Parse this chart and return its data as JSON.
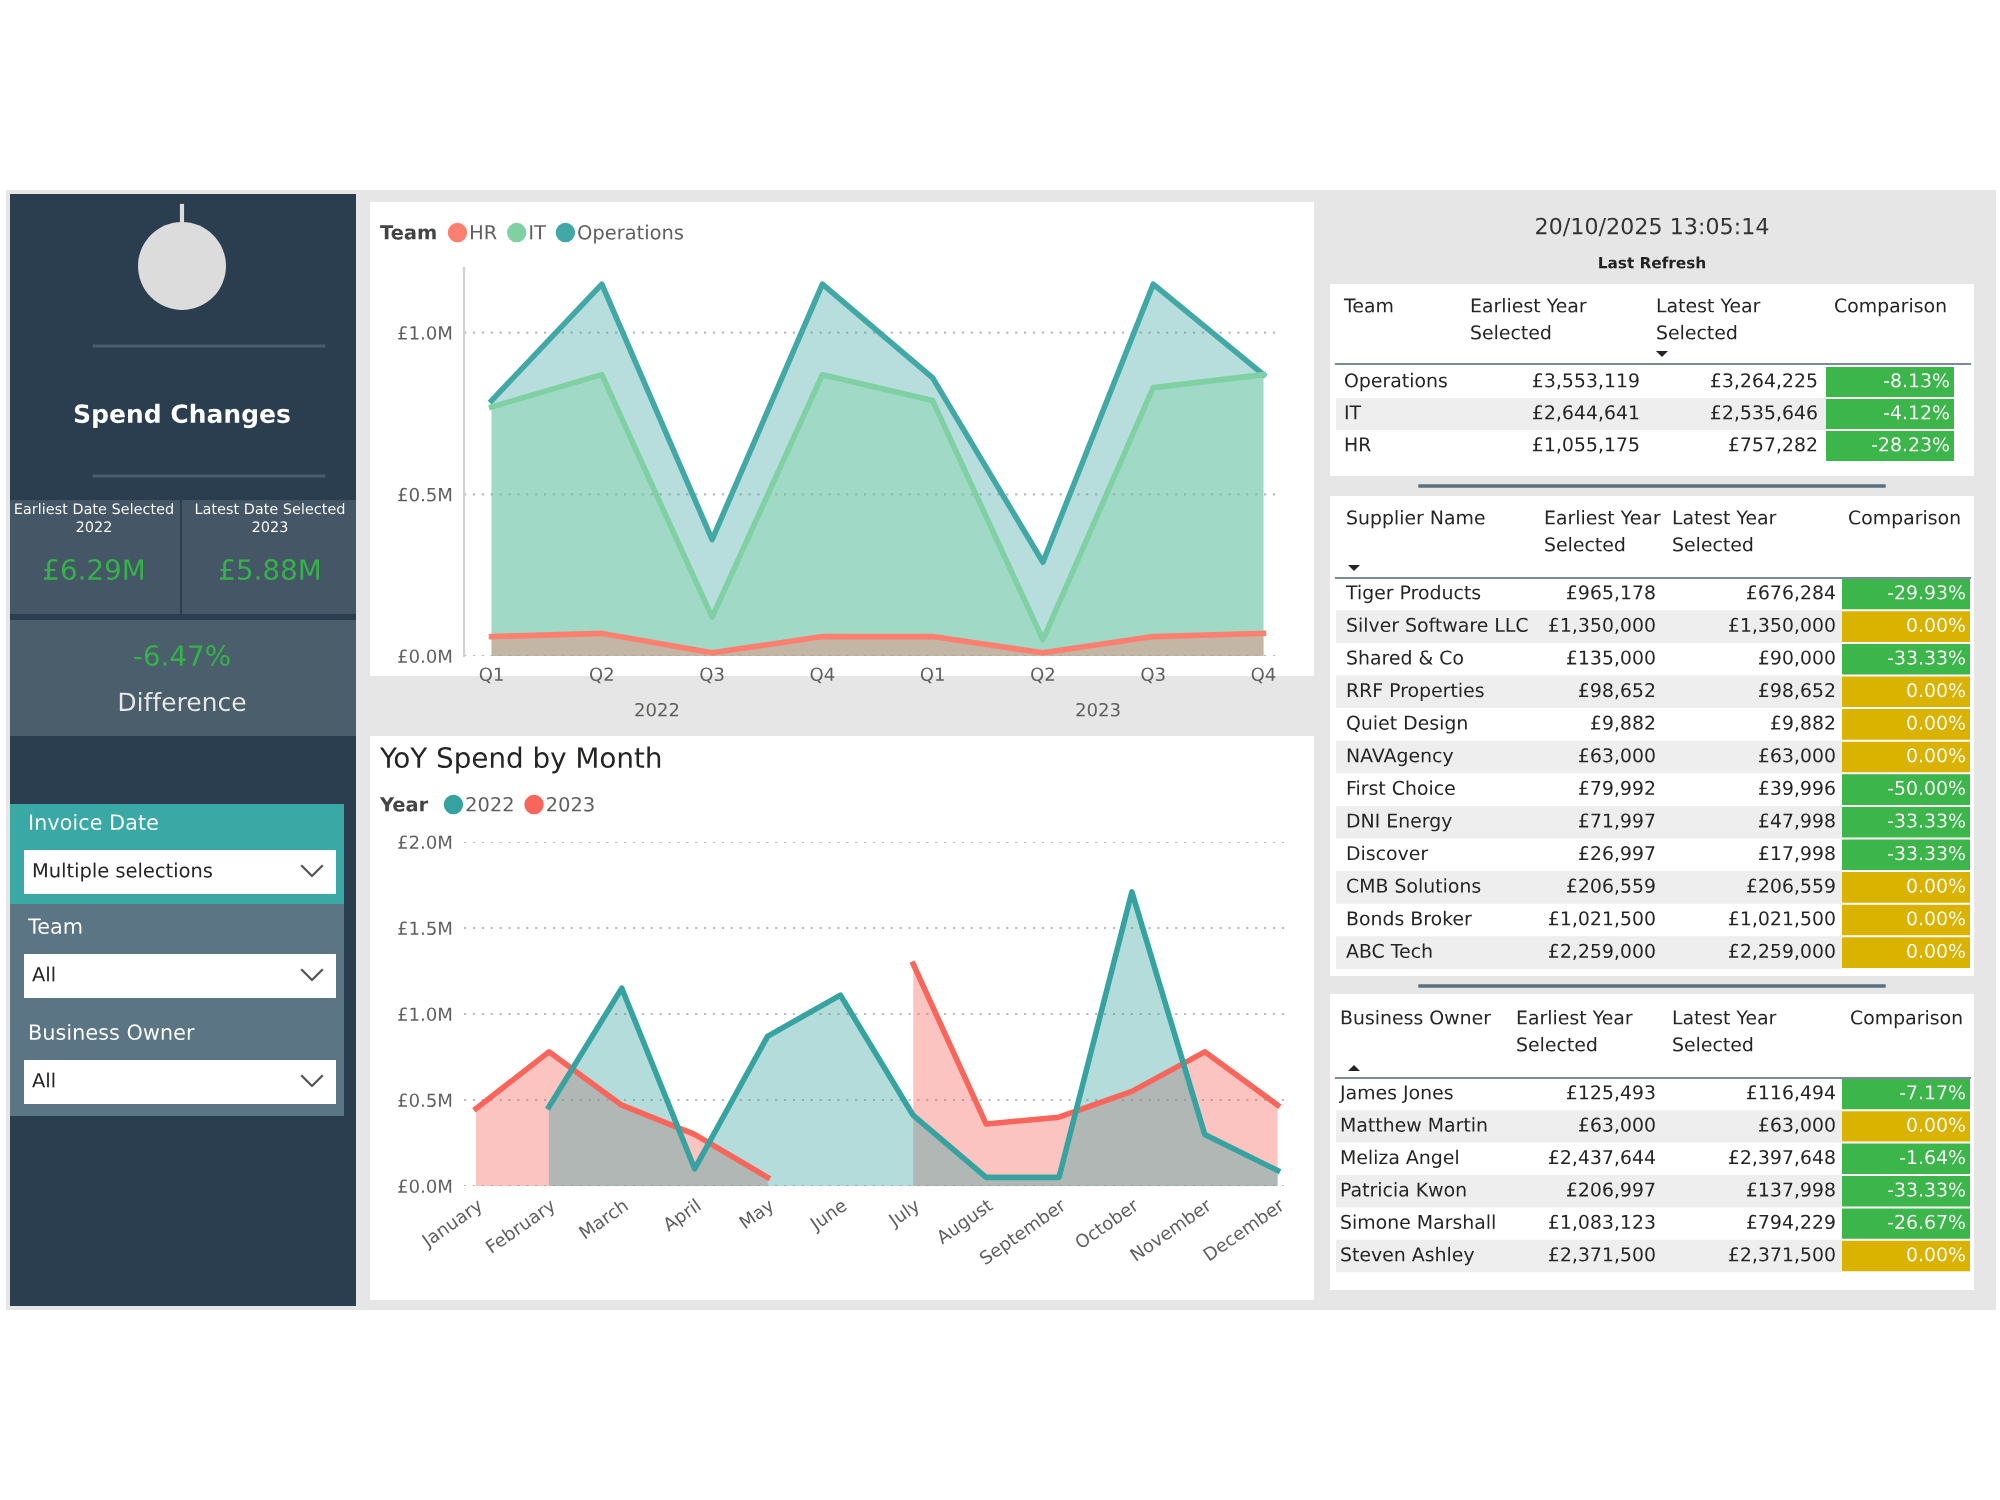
{
  "chart_data": [
    {
      "type": "other",
      "title": "Spend Changes",
      "annotations": [
        "Earliest Date Selected",
        "2022",
        "£6.29M",
        "Latest Date Selected",
        "2023",
        "£5.88M",
        "-6.47%",
        "Difference",
        "Invoice Date",
        "Multiple selections",
        "Team",
        "All",
        "Business Owner",
        "All"
      ]
    },
    {
      "type": "area",
      "legend_title": "Team",
      "legend": "top left",
      "grid": "y",
      "categories": [
        "Q1",
        "Q2",
        "Q3",
        "Q4",
        "Q1",
        "Q2",
        "Q3",
        "Q4"
      ],
      "annotations": [
        "2022",
        "2023"
      ],
      "ylim": [
        0,
        1.2
      ],
      "yticks": [
        {
          "value": 0,
          "label": "£0.0M"
        },
        {
          "value": 0.5,
          "label": "£0.5M"
        },
        {
          "value": 1.0,
          "label": "£1.0M"
        }
      ],
      "series": [
        {
          "name": "HR",
          "color": "#fd7f6f",
          "values": [
            0.06,
            0.07,
            0.01,
            0.06,
            0.06,
            0.01,
            0.06,
            0.07
          ]
        },
        {
          "name": "IT",
          "color": "#7fd1a3",
          "values": [
            0.77,
            0.87,
            0.12,
            0.87,
            0.79,
            0.05,
            0.83,
            0.87
          ]
        },
        {
          "name": "Operations",
          "color": "#41a8a5",
          "values": [
            0.79,
            1.15,
            0.36,
            1.15,
            0.86,
            0.29,
            1.15,
            0.87
          ]
        }
      ]
    },
    {
      "type": "area",
      "title": "YoY Spend by Month",
      "legend_title": "Year",
      "legend": "top left",
      "grid": "y",
      "categories": [
        "January",
        "February",
        "March",
        "April",
        "May",
        "June",
        "July",
        "August",
        "September",
        "October",
        "November",
        "December"
      ],
      "ylim": [
        0,
        2.0
      ],
      "yticks": [
        {
          "value": 0,
          "label": "£0.0M"
        },
        {
          "value": 0.5,
          "label": "£0.5M"
        },
        {
          "value": 1.0,
          "label": "£1.0M"
        },
        {
          "value": 1.5,
          "label": "£1.5M"
        },
        {
          "value": 2.0,
          "label": "£2.0M"
        }
      ],
      "series": [
        {
          "name": "2022",
          "color": "#36a3a0",
          "values": [
            null,
            0.46,
            1.15,
            0.1,
            0.87,
            1.11,
            0.41,
            0.05,
            0.05,
            1.71,
            0.3,
            0.09
          ]
        },
        {
          "name": "2023",
          "color": "#f8655a",
          "values": [
            0.45,
            0.78,
            0.47,
            0.3,
            0.05,
            null,
            1.29,
            0.36,
            0.4,
            0.55,
            0.78,
            0.47
          ]
        }
      ]
    },
    {
      "type": "other",
      "title": "20/10/2025 13:05:14",
      "subtitle": "Last Refresh"
    },
    {
      "type": "other",
      "ylabel": "Team",
      "categories": [
        "Earliest Year Selected",
        "Latest Year Selected",
        "Comparison"
      ],
      "y_categories": [
        "Operations",
        "IT",
        "HR"
      ],
      "cell_labels": [
        [
          "£3,553,119",
          "£3,264,225",
          "-8.13%"
        ],
        [
          "£2,644,641",
          "£2,535,646",
          "-4.12%"
        ],
        [
          "£1,055,175",
          "£757,282",
          "-28.23%"
        ]
      ]
    },
    {
      "type": "other",
      "ylabel": "Supplier Name",
      "categories": [
        "Earliest Year Selected",
        "Latest Year Selected",
        "Comparison"
      ],
      "y_categories": [
        "Tiger Products",
        "Silver Software LLC",
        "Shared & Co",
        "RRF Properties",
        "Quiet Design",
        "NAVAgency",
        "First Choice",
        "DNI Energy",
        "Discover",
        "CMB Solutions",
        "Bonds Broker",
        "ABC Tech"
      ],
      "cell_labels": [
        [
          "£965,178",
          "£676,284",
          "-29.93%"
        ],
        [
          "£1,350,000",
          "£1,350,000",
          "0.00%"
        ],
        [
          "£135,000",
          "£90,000",
          "-33.33%"
        ],
        [
          "£98,652",
          "£98,652",
          "0.00%"
        ],
        [
          "£9,882",
          "£9,882",
          "0.00%"
        ],
        [
          "£63,000",
          "£63,000",
          "0.00%"
        ],
        [
          "£79,992",
          "£39,996",
          "-50.00%"
        ],
        [
          "£71,997",
          "£47,998",
          "-33.33%"
        ],
        [
          "£26,997",
          "£17,998",
          "-33.33%"
        ],
        [
          "£206,559",
          "£206,559",
          "0.00%"
        ],
        [
          "£1,021,500",
          "£1,021,500",
          "0.00%"
        ],
        [
          "£2,259,000",
          "£2,259,000",
          "0.00%"
        ]
      ]
    },
    {
      "type": "other",
      "ylabel": "Business Owner",
      "categories": [
        "Earliest Year Selected",
        "Latest Year Selected",
        "Comparison"
      ],
      "y_categories": [
        "James Jones",
        "Matthew Martin",
        "Meliza Angel",
        "Patricia Kwon",
        "Simone Marshall",
        "Steven Ashley"
      ],
      "cell_labels": [
        [
          "£125,493",
          "£116,494",
          "-7.17%"
        ],
        [
          "£63,000",
          "£63,000",
          "0.00%"
        ],
        [
          "£2,437,644",
          "£2,397,648",
          "-1.64%"
        ],
        [
          "£206,997",
          "£137,998",
          "-33.33%"
        ],
        [
          "£1,083,123",
          "£794,229",
          "-26.67%"
        ],
        [
          "£2,371,500",
          "£2,371,500",
          "0.00%"
        ]
      ]
    }
  ]
}
